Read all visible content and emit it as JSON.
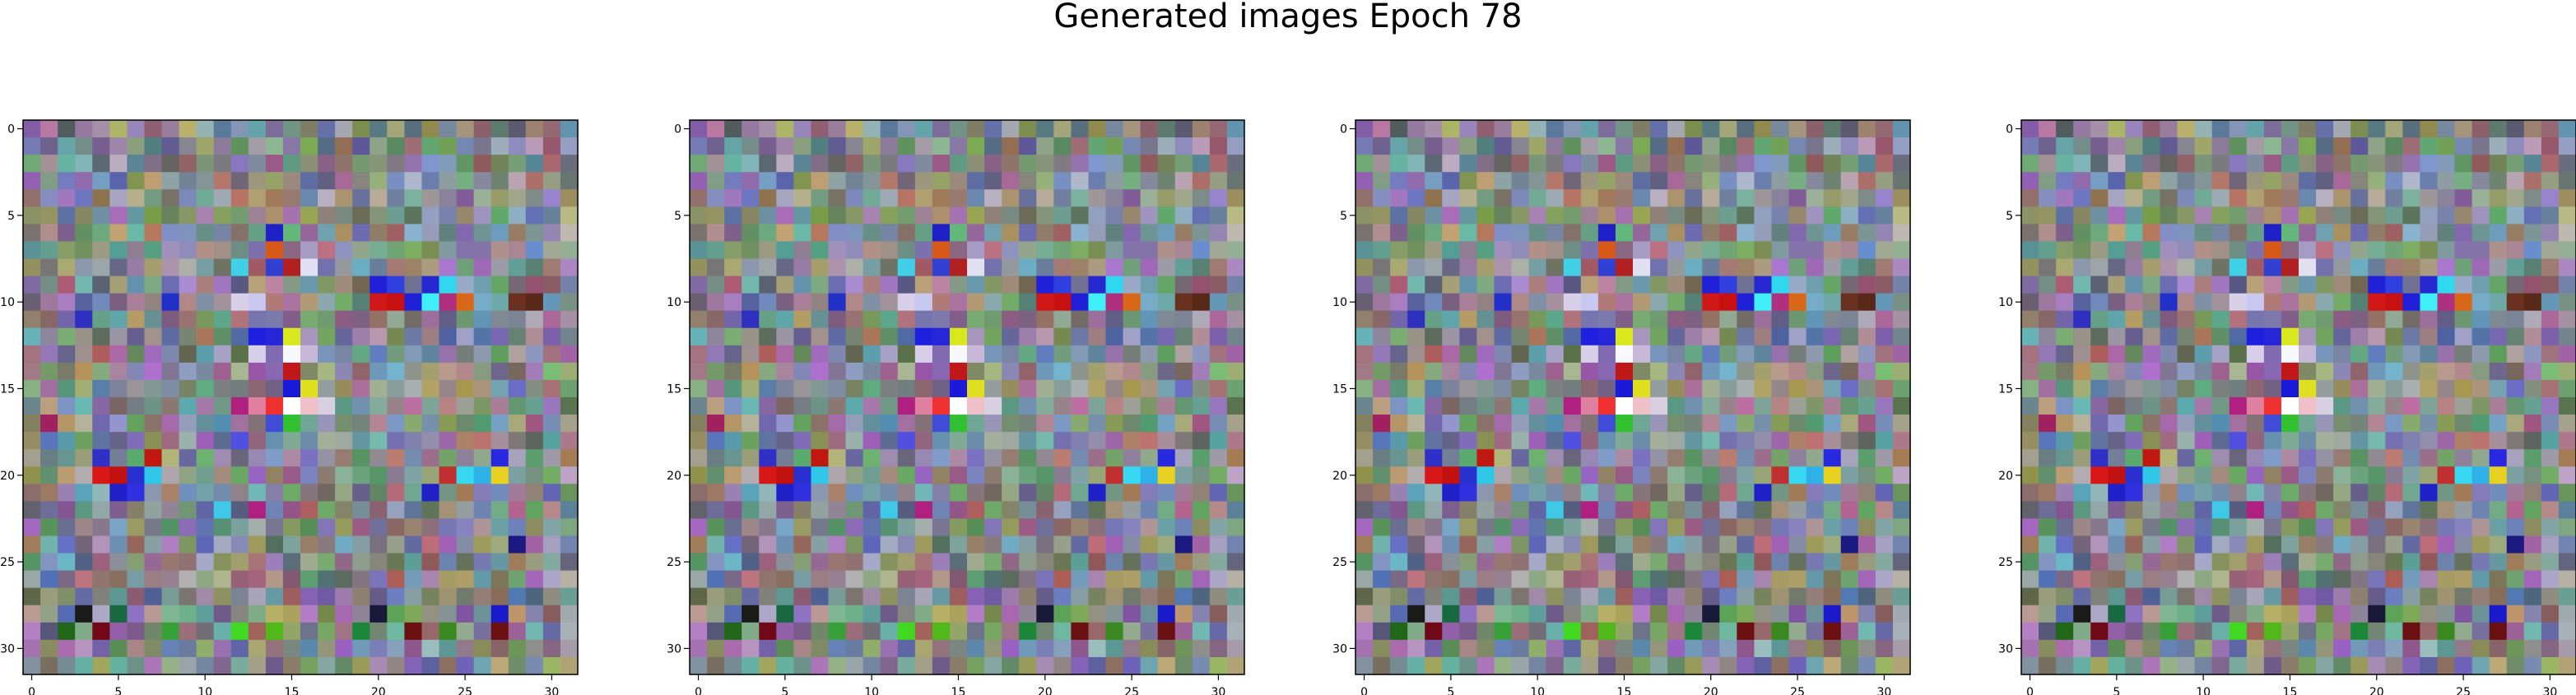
{
  "figure": {
    "title": "Generated images Epoch 78"
  },
  "chart_data": {
    "type": "heatmap",
    "panel_count": 4,
    "grid_size": 32,
    "x_ticks": [
      "0",
      "5",
      "10",
      "15",
      "20",
      "25",
      "30"
    ],
    "y_ticks": [
      "0",
      "5",
      "10",
      "15",
      "20",
      "25",
      "30"
    ],
    "x_range": [
      -0.5,
      31.5
    ],
    "y_range": [
      31.5,
      -0.5
    ],
    "grid": false,
    "content": "32x32 RGB generated image per panel; pixel colors are noise-like and approximated",
    "highlights": [
      {
        "col": 13,
        "row": 12,
        "color": "#1f1fe0"
      },
      {
        "col": 14,
        "row": 12,
        "color": "#2626d8"
      },
      {
        "col": 15,
        "row": 12,
        "color": "#d9e81c"
      },
      {
        "col": 15,
        "row": 13,
        "color": "#f8f8ff"
      },
      {
        "col": 13,
        "row": 13,
        "color": "#d8d0e8"
      },
      {
        "col": 16,
        "row": 13,
        "color": "#c8b8d8"
      },
      {
        "col": 15,
        "row": 15,
        "color": "#1a1ad8"
      },
      {
        "col": 16,
        "row": 15,
        "color": "#e0e020"
      },
      {
        "col": 14,
        "row": 16,
        "color": "#ee3030"
      },
      {
        "col": 15,
        "row": 16,
        "color": "#ffffff"
      },
      {
        "col": 13,
        "row": 16,
        "color": "#e080a0"
      },
      {
        "col": 17,
        "row": 16,
        "color": "#d8d0e0"
      },
      {
        "col": 12,
        "row": 16,
        "color": "#b02080"
      },
      {
        "col": 16,
        "row": 16,
        "color": "#f0c0c8"
      },
      {
        "col": 15,
        "row": 14,
        "color": "#c01818"
      },
      {
        "col": 14,
        "row": 17,
        "color": "#404cd8"
      },
      {
        "col": 15,
        "row": 17,
        "color": "#30c030"
      },
      {
        "col": 12,
        "row": 18,
        "color": "#5050e0"
      },
      {
        "col": 4,
        "row": 20,
        "color": "#d81818"
      },
      {
        "col": 5,
        "row": 20,
        "color": "#c01010"
      },
      {
        "col": 6,
        "row": 20,
        "color": "#2830d0"
      },
      {
        "col": 7,
        "row": 20,
        "color": "#30c8e8"
      },
      {
        "col": 5,
        "row": 21,
        "color": "#2020c8"
      },
      {
        "col": 6,
        "row": 21,
        "color": "#3030e0"
      },
      {
        "col": 7,
        "row": 19,
        "color": "#c01810"
      },
      {
        "col": 4,
        "row": 19,
        "color": "#3030c8"
      },
      {
        "col": 25,
        "row": 20,
        "color": "#38d8f0"
      },
      {
        "col": 26,
        "row": 20,
        "color": "#30b0e8"
      },
      {
        "col": 27,
        "row": 20,
        "color": "#e8d020"
      },
      {
        "col": 24,
        "row": 20,
        "color": "#c03030"
      },
      {
        "col": 27,
        "row": 19,
        "color": "#2828e0"
      },
      {
        "col": 23,
        "row": 21,
        "color": "#2020c8"
      },
      {
        "col": 20,
        "row": 9,
        "color": "#2020d8"
      },
      {
        "col": 21,
        "row": 9,
        "color": "#3040e0"
      },
      {
        "col": 23,
        "row": 9,
        "color": "#2828d0"
      },
      {
        "col": 24,
        "row": 9,
        "color": "#30d8f0"
      },
      {
        "col": 20,
        "row": 10,
        "color": "#d01818"
      },
      {
        "col": 21,
        "row": 10,
        "color": "#c81010"
      },
      {
        "col": 23,
        "row": 10,
        "color": "#40f0f8"
      },
      {
        "col": 25,
        "row": 10,
        "color": "#d86818"
      },
      {
        "col": 22,
        "row": 10,
        "color": "#2020d8"
      },
      {
        "col": 24,
        "row": 10,
        "color": "#b03080"
      },
      {
        "col": 14,
        "row": 7,
        "color": "#d85818"
      },
      {
        "col": 15,
        "row": 8,
        "color": "#b02020"
      },
      {
        "col": 14,
        "row": 8,
        "color": "#3040d0"
      },
      {
        "col": 16,
        "row": 8,
        "color": "#e0e0f0"
      },
      {
        "col": 14,
        "row": 6,
        "color": "#2020c8"
      },
      {
        "col": 12,
        "row": 8,
        "color": "#40d0e8"
      },
      {
        "col": 12,
        "row": 10,
        "color": "#d8d0e8"
      },
      {
        "col": 13,
        "row": 10,
        "color": "#c8c8f0"
      },
      {
        "col": 3,
        "row": 11,
        "color": "#3030c0"
      },
      {
        "col": 8,
        "row": 10,
        "color": "#2030c8"
      },
      {
        "col": 11,
        "row": 22,
        "color": "#40c8e8"
      },
      {
        "col": 13,
        "row": 22,
        "color": "#b02080"
      },
      {
        "col": 3,
        "row": 28,
        "color": "#1a1a18"
      },
      {
        "col": 4,
        "row": 29,
        "color": "#700818"
      },
      {
        "col": 2,
        "row": 29,
        "color": "#206818"
      },
      {
        "col": 5,
        "row": 28,
        "color": "#186840"
      },
      {
        "col": 12,
        "row": 29,
        "color": "#40d820"
      },
      {
        "col": 14,
        "row": 29,
        "color": "#50b818"
      },
      {
        "col": 20,
        "row": 28,
        "color": "#181838"
      },
      {
        "col": 22,
        "row": 29,
        "color": "#6a1010"
      },
      {
        "col": 27,
        "row": 28,
        "color": "#1a1acc"
      },
      {
        "col": 27,
        "row": 29,
        "color": "#6a1010"
      },
      {
        "col": 24,
        "row": 29,
        "color": "#3a8820"
      },
      {
        "col": 19,
        "row": 29,
        "color": "#1a8838"
      },
      {
        "col": 8,
        "row": 29,
        "color": "#38a038"
      },
      {
        "col": 29,
        "row": 29,
        "color": "#70b8b0"
      },
      {
        "col": 28,
        "row": 24,
        "color": "#1a1a80"
      },
      {
        "col": 1,
        "row": 17,
        "color": "#a02060"
      },
      {
        "col": 28,
        "row": 10,
        "color": "#6a3020"
      },
      {
        "col": 29,
        "row": 10,
        "color": "#5a2818"
      }
    ]
  }
}
